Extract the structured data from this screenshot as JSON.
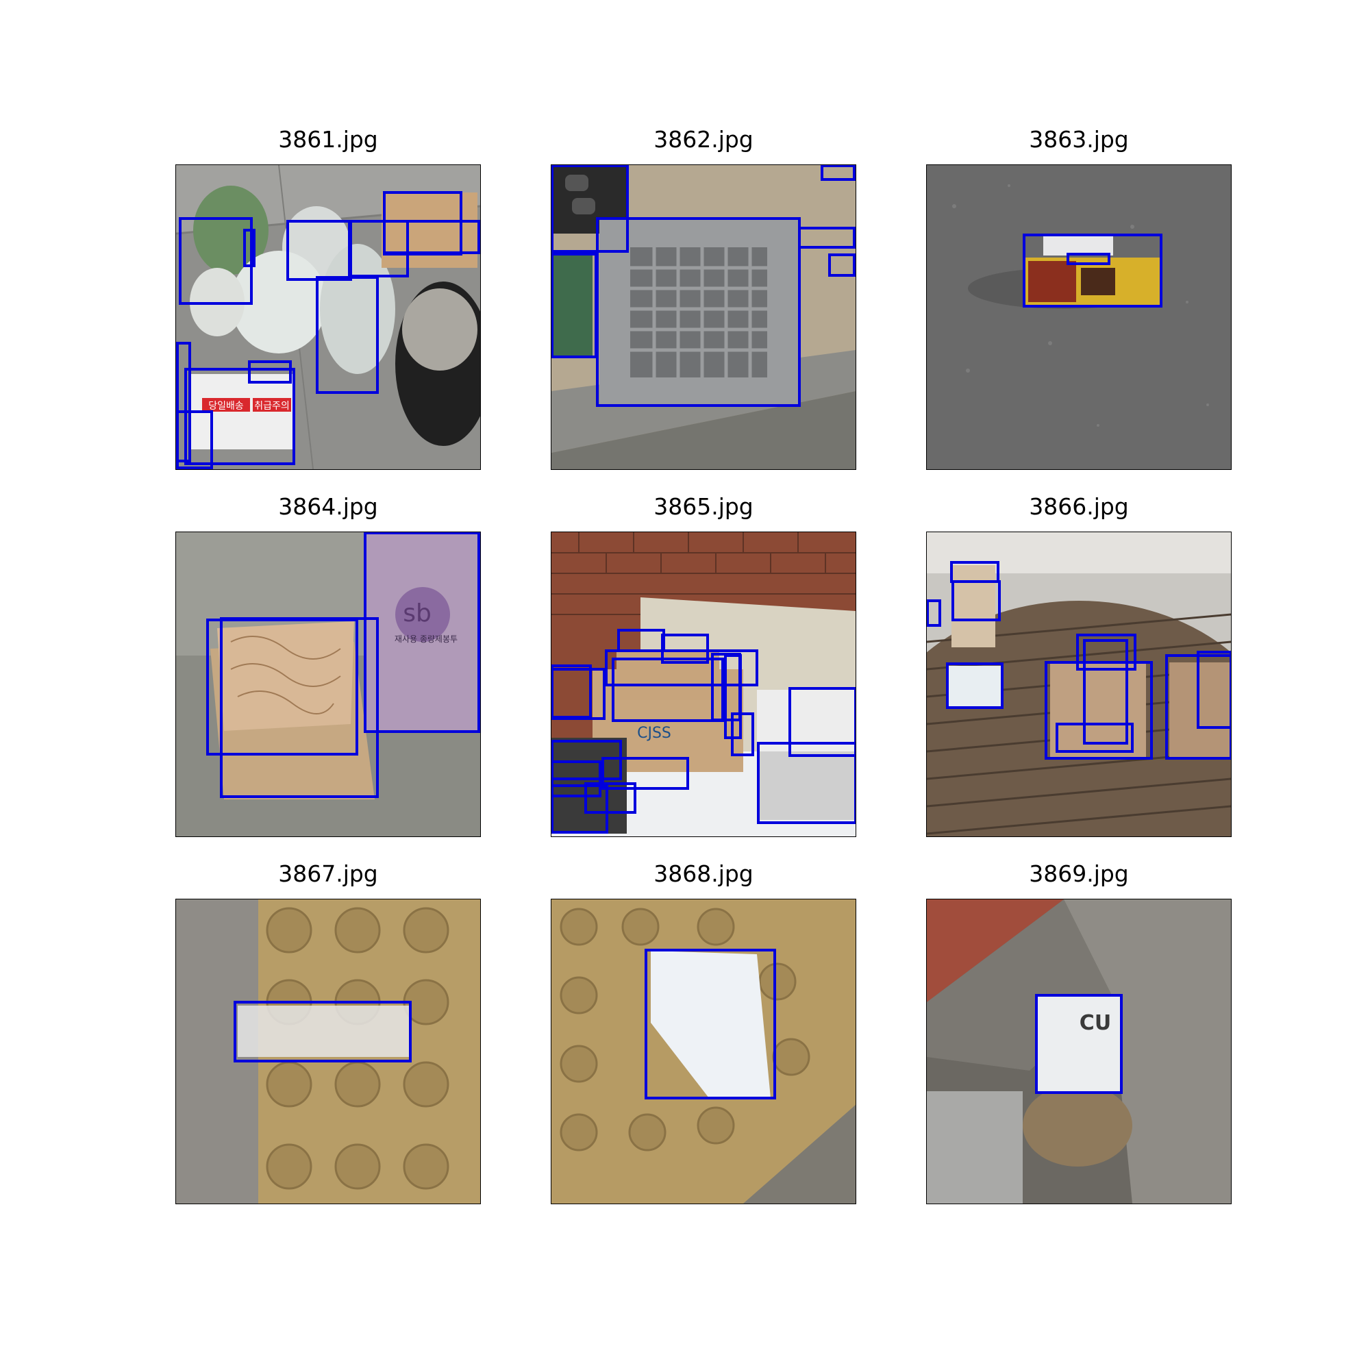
{
  "figure": {
    "box_color": "#0000dd",
    "panels": [
      {
        "title": "3861.jpg",
        "scene": "bags-tire-boxes"
      },
      {
        "title": "3862.jpg",
        "scene": "plastic-basket"
      },
      {
        "title": "3863.jpg",
        "scene": "small-box-asphalt"
      },
      {
        "title": "3864.jpg",
        "scene": "cardboard-box-paper"
      },
      {
        "title": "3865.jpg",
        "scene": "boxes-by-brick-wall"
      },
      {
        "title": "3866.jpg",
        "scene": "cups-on-table"
      },
      {
        "title": "3867.jpg",
        "scene": "plastic-on-tactile-paving"
      },
      {
        "title": "3868.jpg",
        "scene": "paper-on-tactile-paving"
      },
      {
        "title": "3869.jpg",
        "scene": "cu-receipt-in-crack"
      }
    ],
    "panel_texts": {
      "p3861_sign1": "당일배송",
      "p3861_sign2": "취급주의",
      "p3864_bag_brand": "sb",
      "p3864_bag_line": "재사용 종량제봉투",
      "p3865_box_text": "CJSS",
      "p3869_logo": "CU"
    }
  }
}
